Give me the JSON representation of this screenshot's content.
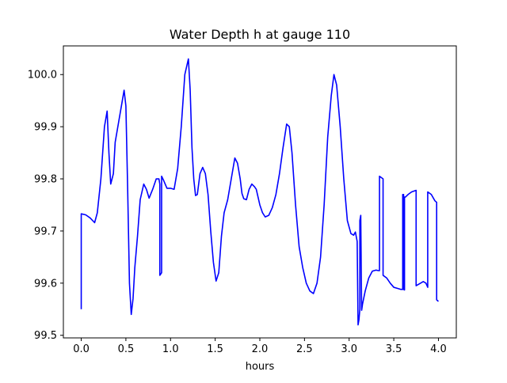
{
  "chart_data": {
    "type": "line",
    "title": "Water Depth h at gauge 110",
    "xlabel": "hours",
    "ylabel": "",
    "xlim": [
      -0.2,
      4.2
    ],
    "ylim": [
      99.495,
      100.055
    ],
    "xticks": [
      0.0,
      0.5,
      1.0,
      1.5,
      2.0,
      2.5,
      3.0,
      3.5,
      4.0
    ],
    "xtick_labels": [
      "0.0",
      "0.5",
      "1.0",
      "1.5",
      "2.0",
      "2.5",
      "3.0",
      "3.5",
      "4.0"
    ],
    "yticks": [
      99.5,
      99.6,
      99.7,
      99.8,
      99.9,
      100.0
    ],
    "ytick_labels": [
      "99.5",
      "99.6",
      "99.7",
      "99.8",
      "99.9",
      "100.0"
    ],
    "grid": false,
    "legend": "none",
    "series": [
      {
        "color": "#0000ff",
        "x": [
          0.0,
          0.0,
          0.05,
          0.1,
          0.15,
          0.18,
          0.22,
          0.26,
          0.29,
          0.31,
          0.33,
          0.36,
          0.38,
          0.42,
          0.44,
          0.46,
          0.48,
          0.5,
          0.52,
          0.54,
          0.56,
          0.58,
          0.6,
          0.63,
          0.66,
          0.7,
          0.73,
          0.76,
          0.8,
          0.84,
          0.87,
          0.88,
          0.88,
          0.9,
          0.9,
          0.92,
          0.96,
          1.0,
          1.04,
          1.08,
          1.12,
          1.16,
          1.2,
          1.22,
          1.24,
          1.26,
          1.28,
          1.3,
          1.33,
          1.36,
          1.39,
          1.42,
          1.45,
          1.48,
          1.51,
          1.54,
          1.57,
          1.6,
          1.64,
          1.68,
          1.72,
          1.75,
          1.78,
          1.8,
          1.82,
          1.85,
          1.88,
          1.91,
          1.94,
          1.96,
          1.98,
          2.0,
          2.03,
          2.06,
          2.1,
          2.14,
          2.18,
          2.22,
          2.26,
          2.3,
          2.33,
          2.36,
          2.4,
          2.44,
          2.48,
          2.52,
          2.56,
          2.6,
          2.64,
          2.68,
          2.72,
          2.76,
          2.8,
          2.83,
          2.86,
          2.9,
          2.94,
          2.98,
          3.02,
          3.05,
          3.07,
          3.09,
          3.1,
          3.1,
          3.11,
          3.12,
          3.12,
          3.13,
          3.14,
          3.14,
          3.15,
          3.18,
          3.22,
          3.26,
          3.3,
          3.33,
          3.34,
          3.34,
          3.38,
          3.38,
          3.42,
          3.46,
          3.5,
          3.54,
          3.58,
          3.6,
          3.6,
          3.61,
          3.61,
          3.62,
          3.62,
          3.63,
          3.63,
          3.66,
          3.7,
          3.75,
          3.75,
          3.8,
          3.83,
          3.86,
          3.88,
          3.88,
          3.92,
          3.96,
          3.98,
          3.98,
          4.0
        ],
        "y": [
          99.55,
          99.733,
          99.731,
          99.725,
          99.716,
          99.735,
          99.8,
          99.9,
          99.93,
          99.85,
          99.79,
          99.81,
          99.87,
          99.91,
          99.93,
          99.95,
          99.97,
          99.94,
          99.78,
          99.6,
          99.54,
          99.57,
          99.63,
          99.69,
          99.76,
          99.79,
          99.78,
          99.763,
          99.78,
          99.8,
          99.8,
          99.79,
          99.615,
          99.62,
          99.805,
          99.798,
          99.782,
          99.782,
          99.78,
          99.82,
          99.9,
          100.0,
          100.03,
          99.97,
          99.86,
          99.8,
          99.768,
          99.77,
          99.81,
          99.822,
          99.81,
          99.77,
          99.7,
          99.64,
          99.604,
          99.62,
          99.69,
          99.735,
          99.76,
          99.8,
          99.84,
          99.83,
          99.8,
          99.772,
          99.762,
          99.76,
          99.78,
          99.79,
          99.785,
          99.78,
          99.765,
          99.75,
          99.735,
          99.727,
          99.73,
          99.745,
          99.77,
          99.81,
          99.86,
          99.905,
          99.9,
          99.85,
          99.75,
          99.67,
          99.63,
          99.6,
          99.585,
          99.58,
          99.6,
          99.65,
          99.75,
          99.88,
          99.96,
          100.0,
          99.98,
          99.9,
          99.8,
          99.72,
          99.695,
          99.692,
          99.698,
          99.68,
          99.52,
          99.52,
          99.53,
          99.55,
          99.72,
          99.73,
          99.548,
          99.548,
          99.56,
          99.585,
          99.61,
          99.623,
          99.625,
          99.624,
          99.624,
          99.805,
          99.8,
          99.615,
          99.61,
          99.6,
          99.592,
          99.59,
          99.588,
          99.588,
          99.77,
          99.77,
          99.588,
          99.587,
          99.765,
          99.765,
          99.765,
          99.77,
          99.775,
          99.778,
          99.595,
          99.6,
          99.603,
          99.6,
          99.592,
          99.775,
          99.77,
          99.758,
          99.755,
          99.568,
          99.565
        ]
      }
    ]
  }
}
